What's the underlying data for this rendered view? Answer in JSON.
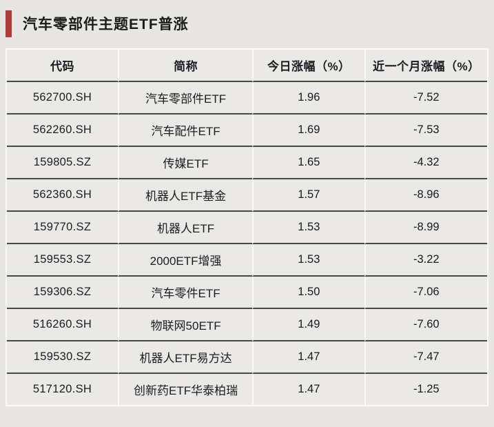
{
  "header": {
    "title": "汽车零部件主题ETF普涨"
  },
  "colors": {
    "accent": "#b23b35",
    "page_background": "#e8e6e2",
    "cell_background": "#ebe9e6",
    "row_divider": "#474747",
    "table_outline": "#fbfaf7",
    "text": "#1c1c22"
  },
  "chart_data": {
    "type": "table",
    "title": "汽车零部件主题ETF普涨",
    "columns": [
      "代码",
      "简称",
      "今日涨幅（%）",
      "近一个月涨幅（%）"
    ],
    "rows": [
      [
        "562700.SH",
        "汽车零部件ETF",
        "1.96",
        "-7.52"
      ],
      [
        "562260.SH",
        "汽车配件ETF",
        "1.69",
        "-7.53"
      ],
      [
        "159805.SZ",
        "传媒ETF",
        "1.65",
        "-4.32"
      ],
      [
        "562360.SH",
        "机器人ETF基金",
        "1.57",
        "-8.96"
      ],
      [
        "159770.SZ",
        "机器人ETF",
        "1.53",
        "-8.99"
      ],
      [
        "159553.SZ",
        "2000ETF增强",
        "1.53",
        "-3.22"
      ],
      [
        "159306.SZ",
        "汽车零件ETF",
        "1.50",
        "-7.06"
      ],
      [
        "516260.SH",
        "物联网50ETF",
        "1.49",
        "-7.60"
      ],
      [
        "159530.SZ",
        "机器人ETF易方达",
        "1.47",
        "-7.47"
      ],
      [
        "517120.SH",
        "创新药ETF华泰柏瑞",
        "1.47",
        "-1.25"
      ]
    ]
  }
}
